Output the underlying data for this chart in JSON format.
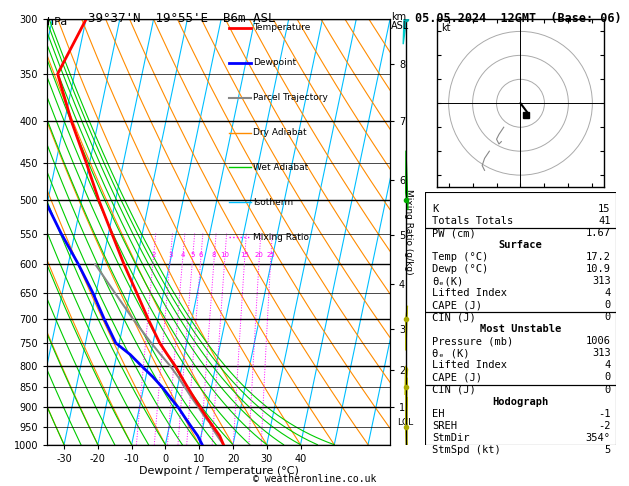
{
  "title_left": "39°37'N  19°55'E  B6m ASL",
  "title_right": "05.05.2024  12GMT  (Base: 06)",
  "xlabel": "Dewpoint / Temperature (°C)",
  "pressure_levels": [
    300,
    350,
    400,
    450,
    500,
    550,
    600,
    650,
    700,
    750,
    800,
    850,
    900,
    950,
    1000
  ],
  "pressure_major": [
    300,
    400,
    500,
    600,
    700,
    800,
    900,
    1000
  ],
  "temp_range": [
    -35,
    40
  ],
  "temp_ticks": [
    -30,
    -20,
    -10,
    0,
    10,
    20,
    30,
    40
  ],
  "isotherm_color": "#00bfff",
  "dry_adiabat_color": "#ff8c00",
  "wet_adiabat_color": "#00cc00",
  "mixing_ratio_color": "#ff00ff",
  "temp_color": "#ff0000",
  "dewpoint_color": "#0000ff",
  "parcel_color": "#888888",
  "legend_items": [
    {
      "label": "Temperature",
      "color": "#ff0000",
      "lw": 2,
      "ls": "-"
    },
    {
      "label": "Dewpoint",
      "color": "#0000ff",
      "lw": 2,
      "ls": "-"
    },
    {
      "label": "Parcel Trajectory",
      "color": "#888888",
      "lw": 1.5,
      "ls": "-"
    },
    {
      "label": "Dry Adiabat",
      "color": "#ff8c00",
      "lw": 1,
      "ls": "-"
    },
    {
      "label": "Wet Adiabat",
      "color": "#00cc00",
      "lw": 1,
      "ls": "-"
    },
    {
      "label": "Isotherm",
      "color": "#00bfff",
      "lw": 1,
      "ls": "-"
    },
    {
      "label": "Mixing Ratio",
      "color": "#ff00ff",
      "lw": 1,
      "ls": ":"
    }
  ],
  "sounding_pressure": [
    1000,
    975,
    950,
    925,
    900,
    875,
    850,
    825,
    800,
    775,
    750,
    700,
    650,
    600,
    550,
    500,
    450,
    400,
    350,
    300
  ],
  "sounding_temp": [
    17.2,
    15.5,
    13.0,
    10.5,
    8.0,
    5.5,
    3.0,
    0.5,
    -2.0,
    -5.0,
    -8.0,
    -13.0,
    -18.0,
    -23.5,
    -29.0,
    -35.0,
    -41.0,
    -48.0,
    -55.0,
    -50.0
  ],
  "sounding_dewp": [
    10.9,
    9.0,
    6.5,
    4.0,
    1.5,
    -1.5,
    -4.5,
    -8.0,
    -12.0,
    -16.0,
    -21.0,
    -26.0,
    -31.0,
    -37.0,
    -44.0,
    -51.0,
    -58.0,
    -65.0,
    -72.0,
    -68.0
  ],
  "parcel_pressure": [
    1000,
    975,
    950,
    940,
    925,
    900,
    875,
    850,
    825,
    800,
    775,
    750,
    700,
    650,
    600
  ],
  "parcel_temp": [
    17.2,
    14.8,
    12.5,
    11.8,
    10.0,
    7.5,
    4.8,
    2.2,
    -0.5,
    -3.5,
    -7.0,
    -10.5,
    -17.5,
    -24.5,
    -32.0
  ],
  "lcl_pressure": 940,
  "mixing_ratio_values": [
    2,
    3,
    4,
    5,
    6,
    8,
    10,
    15,
    20,
    25
  ],
  "km_ticks": [
    1,
    2,
    3,
    4,
    5,
    6,
    7,
    8
  ],
  "km_pressures": [
    900,
    810,
    720,
    635,
    552,
    472,
    400,
    340
  ],
  "stats_K": 15,
  "stats_TT": 41,
  "stats_PW": 1.67,
  "surf_temp": 17.2,
  "surf_dewp": 10.9,
  "surf_theta_e": 313,
  "surf_LI": 4,
  "surf_CAPE": 0,
  "surf_CIN": 0,
  "mu_pressure": 1006,
  "mu_theta_e": 313,
  "mu_LI": 4,
  "mu_CAPE": 0,
  "mu_CIN": 0,
  "hodo_EH": -1,
  "hodo_SREH": -2,
  "hodo_StmDir": "354°",
  "hodo_StmSpd": 5,
  "copyright": "© weatheronline.co.uk"
}
